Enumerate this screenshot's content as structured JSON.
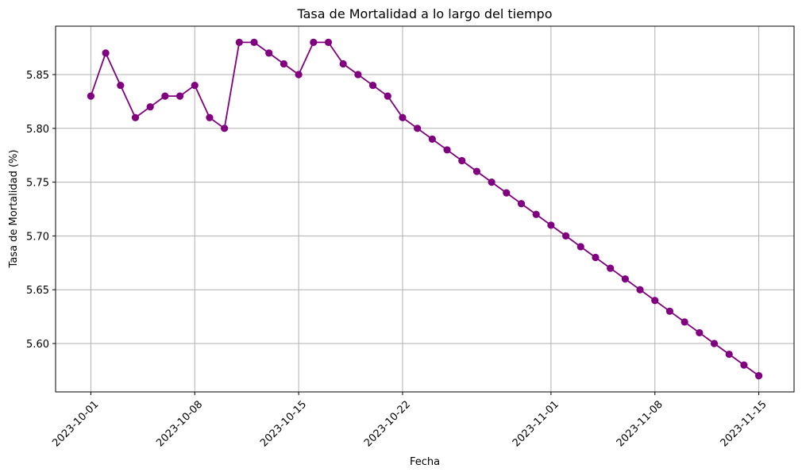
{
  "chart_data": {
    "type": "line",
    "title": "Tasa de Mortalidad a lo largo del tiempo",
    "xlabel": "Fecha",
    "ylabel": "Tasa de Mortalidad (%)",
    "x_tick_labels": [
      "2023-10-01",
      "2023-10-08",
      "2023-10-15",
      "2023-10-22",
      "2023-11-01",
      "2023-11-08",
      "2023-11-15"
    ],
    "y_tick_labels": [
      "5.60",
      "5.65",
      "5.70",
      "5.75",
      "5.80",
      "5.85"
    ],
    "ylim": [
      5.555,
      5.895
    ],
    "xlim": [
      "2023-09-28T15:00",
      "2023-11-17T09:00"
    ],
    "grid": true,
    "x_tick_rotation_deg": 45,
    "series": [
      {
        "color": "#800080",
        "marker": "circle",
        "x": [
          "2023-10-01",
          "2023-10-02",
          "2023-10-03",
          "2023-10-04",
          "2023-10-05",
          "2023-10-06",
          "2023-10-07",
          "2023-10-08",
          "2023-10-09",
          "2023-10-10",
          "2023-10-11",
          "2023-10-12",
          "2023-10-13",
          "2023-10-14",
          "2023-10-15",
          "2023-10-16",
          "2023-10-17",
          "2023-10-18",
          "2023-10-19",
          "2023-10-20",
          "2023-10-21",
          "2023-10-22",
          "2023-10-23",
          "2023-10-24",
          "2023-10-25",
          "2023-10-26",
          "2023-10-27",
          "2023-10-28",
          "2023-10-29",
          "2023-10-30",
          "2023-10-31",
          "2023-11-01",
          "2023-11-02",
          "2023-11-03",
          "2023-11-04",
          "2023-11-05",
          "2023-11-06",
          "2023-11-07",
          "2023-11-08",
          "2023-11-09",
          "2023-11-10",
          "2023-11-11",
          "2023-11-12",
          "2023-11-13",
          "2023-11-14",
          "2023-11-15"
        ],
        "values": [
          5.83,
          5.87,
          5.84,
          5.81,
          5.82,
          5.83,
          5.83,
          5.84,
          5.81,
          5.8,
          5.88,
          5.88,
          5.87,
          5.86,
          5.85,
          5.88,
          5.88,
          5.86,
          5.85,
          5.84,
          5.83,
          5.81,
          5.8,
          5.79,
          5.78,
          5.77,
          5.76,
          5.75,
          5.74,
          5.73,
          5.72,
          5.71,
          5.7,
          5.69,
          5.68,
          5.67,
          5.66,
          5.65,
          5.64,
          5.63,
          5.62,
          5.61,
          5.6,
          5.59,
          5.58,
          5.57
        ]
      }
    ]
  }
}
